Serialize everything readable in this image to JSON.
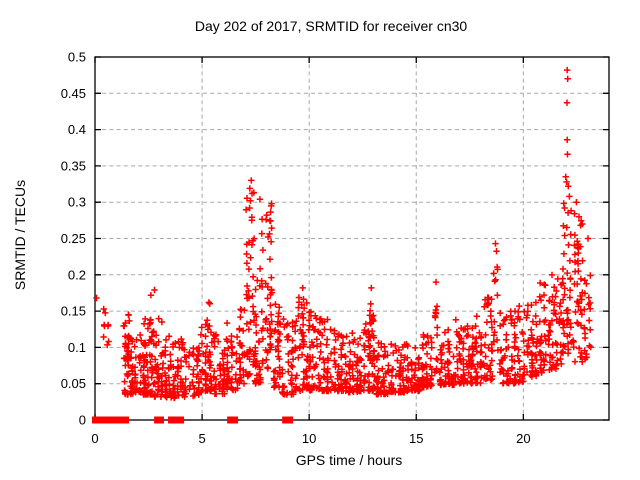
{
  "chart_data": {
    "type": "scatter",
    "title": "Day 202 of 2017, SRMTID for receiver cn30",
    "xlabel": "GPS time / hours",
    "ylabel": "SRMTID / TECUs",
    "series_name": "SRMTID",
    "xlim": [
      0,
      24
    ],
    "ylim": [
      0,
      0.5
    ],
    "xticks": {
      "values": [
        0,
        5,
        10,
        15,
        20
      ],
      "labels": [
        "0",
        "5",
        "10",
        "15",
        "20"
      ]
    },
    "yticks": {
      "values": [
        0,
        0.05,
        0.1,
        0.15,
        0.2,
        0.25,
        0.3,
        0.35,
        0.4,
        0.45,
        0.5
      ],
      "labels": [
        "0",
        "0.05",
        "0.1",
        "0.15",
        "0.2",
        "0.25",
        "0.3",
        "0.35",
        "0.4",
        "0.45",
        "0.5"
      ]
    },
    "grid": {
      "visible": true,
      "style": "dashed",
      "color": "#a8a8a8"
    },
    "border_color": "#000000",
    "marker": {
      "glyph": "+",
      "size": 7,
      "color": "#ff0000",
      "stroke_width": 1.5
    },
    "zero_value_runs_hours": [
      [
        0.0,
        0.55
      ],
      [
        0.66,
        1.45
      ],
      [
        2.9,
        3.08
      ],
      [
        3.55,
        3.74
      ],
      [
        3.88,
        4.02
      ],
      [
        6.31,
        6.54
      ],
      [
        8.88,
        9.11
      ]
    ],
    "outlier_points": [
      [
        0.07,
        0.168
      ],
      [
        2.78,
        0.179
      ],
      [
        7.3,
        0.33
      ],
      [
        7.33,
        0.312
      ],
      [
        7.26,
        0.302
      ],
      [
        7.7,
        0.304
      ],
      [
        7.22,
        0.292
      ],
      [
        9.7,
        0.182
      ],
      [
        12.9,
        0.182
      ],
      [
        15.92,
        0.19
      ],
      [
        18.7,
        0.243
      ],
      [
        21.98,
        0.335
      ],
      [
        22.02,
        0.328
      ],
      [
        22.05,
        0.482
      ],
      [
        22.07,
        0.47
      ],
      [
        22.04,
        0.437
      ],
      [
        22.05,
        0.386
      ],
      [
        22.06,
        0.366
      ],
      [
        22.1,
        0.322
      ],
      [
        22.15,
        0.308
      ],
      [
        22.48,
        0.3
      ],
      [
        22.6,
        0.28
      ],
      [
        23.02,
        0.25
      ]
    ],
    "density_bins": [
      [
        0.38,
        0.68,
        9,
        0.1,
        0.158,
        1.0
      ],
      [
        1.3,
        1.8,
        52,
        0.035,
        0.138,
        2.0
      ],
      [
        1.48,
        1.62,
        10,
        0.06,
        0.15,
        1.2
      ],
      [
        1.8,
        2.2,
        30,
        0.038,
        0.12,
        2.0
      ],
      [
        2.2,
        2.72,
        52,
        0.035,
        0.158,
        2.0
      ],
      [
        2.52,
        2.68,
        10,
        0.08,
        0.172,
        1.2
      ],
      [
        2.72,
        3.2,
        42,
        0.032,
        0.14,
        2.0
      ],
      [
        3.2,
        3.8,
        48,
        0.03,
        0.122,
        2.0
      ],
      [
        3.8,
        4.3,
        38,
        0.032,
        0.115,
        2.0
      ],
      [
        4.3,
        4.9,
        34,
        0.032,
        0.1,
        1.9
      ],
      [
        4.9,
        5.5,
        44,
        0.04,
        0.14,
        2.0
      ],
      [
        5.22,
        5.4,
        8,
        0.08,
        0.172,
        1.2
      ],
      [
        5.5,
        6.1,
        44,
        0.036,
        0.12,
        2.0
      ],
      [
        6.1,
        6.7,
        40,
        0.04,
        0.135,
        1.9
      ],
      [
        6.7,
        7.0,
        28,
        0.05,
        0.16,
        1.7
      ],
      [
        7.0,
        7.45,
        44,
        0.06,
        0.33,
        1.5
      ],
      [
        7.45,
        7.75,
        32,
        0.05,
        0.22,
        1.7
      ],
      [
        7.75,
        8.3,
        55,
        0.07,
        0.3,
        1.3
      ],
      [
        8.3,
        8.7,
        34,
        0.045,
        0.175,
        1.7
      ],
      [
        8.7,
        9.3,
        40,
        0.035,
        0.15,
        1.9
      ],
      [
        9.3,
        9.95,
        45,
        0.04,
        0.17,
        1.9
      ],
      [
        9.6,
        9.8,
        9,
        0.1,
        0.18,
        1.2
      ],
      [
        9.95,
        10.4,
        38,
        0.04,
        0.155,
        1.9
      ],
      [
        10.4,
        11.1,
        50,
        0.04,
        0.14,
        2.0
      ],
      [
        11.1,
        11.8,
        54,
        0.04,
        0.125,
        2.1
      ],
      [
        11.8,
        12.5,
        54,
        0.038,
        0.12,
        2.1
      ],
      [
        12.5,
        13.1,
        54,
        0.04,
        0.15,
        1.9
      ],
      [
        12.82,
        12.98,
        8,
        0.1,
        0.178,
        1.2
      ],
      [
        13.1,
        13.8,
        54,
        0.035,
        0.11,
        2.1
      ],
      [
        13.8,
        14.5,
        54,
        0.038,
        0.105,
        2.1
      ],
      [
        14.5,
        15.2,
        54,
        0.04,
        0.11,
        2.1
      ],
      [
        15.2,
        15.8,
        48,
        0.045,
        0.12,
        2.0
      ],
      [
        15.82,
        16.05,
        13,
        0.06,
        0.188,
        1.4
      ],
      [
        16.05,
        16.8,
        50,
        0.048,
        0.125,
        2.0
      ],
      [
        16.8,
        17.5,
        52,
        0.05,
        0.14,
        1.9
      ],
      [
        17.5,
        18.1,
        48,
        0.05,
        0.15,
        1.8
      ],
      [
        18.1,
        18.6,
        38,
        0.055,
        0.17,
        1.7
      ],
      [
        18.58,
        18.85,
        13,
        0.08,
        0.235,
        1.4
      ],
      [
        18.85,
        19.5,
        44,
        0.05,
        0.15,
        1.8
      ],
      [
        19.5,
        20.1,
        44,
        0.05,
        0.16,
        1.8
      ],
      [
        20.1,
        20.7,
        44,
        0.058,
        0.17,
        1.7
      ],
      [
        20.7,
        21.3,
        44,
        0.065,
        0.19,
        1.6
      ],
      [
        21.3,
        21.8,
        40,
        0.07,
        0.21,
        1.5
      ],
      [
        21.8,
        22.3,
        46,
        0.09,
        0.3,
        1.3
      ],
      [
        22.3,
        22.8,
        44,
        0.08,
        0.29,
        1.4
      ],
      [
        22.8,
        23.2,
        22,
        0.08,
        0.24,
        1.6
      ]
    ],
    "generator_seed": 20170202
  }
}
